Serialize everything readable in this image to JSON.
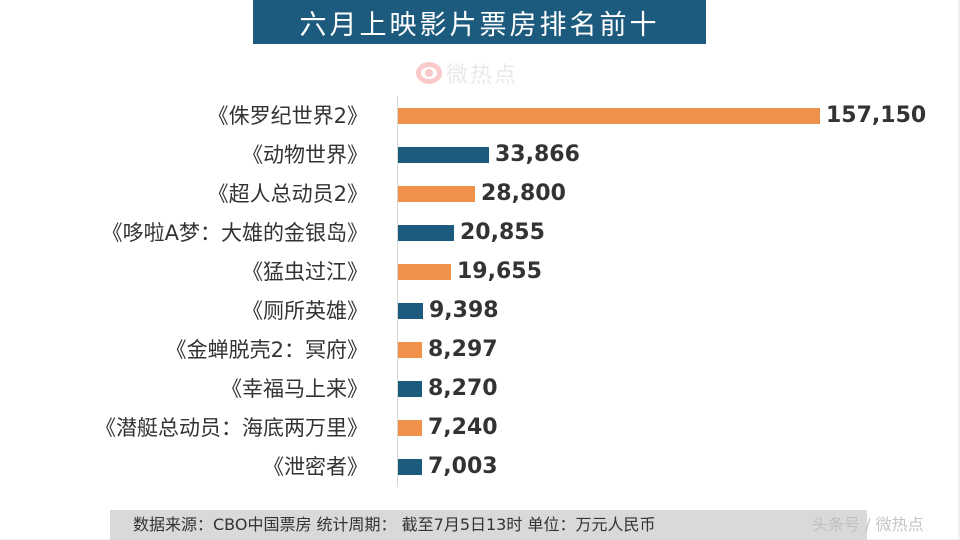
{
  "title": "六月上映影片票房排名前十",
  "watermark_top": "微热点",
  "footer": {
    "source_text": "数据来源：CBO中国票房  统计周期：  截至7月5日13时  单位：万元人民币",
    "watermark": "头条号 / 微热点"
  },
  "colors": {
    "banner": "#1c5a7e",
    "orange": "#f0914a",
    "blue": "#1c5a7e"
  },
  "chart_data": {
    "type": "bar",
    "orientation": "horizontal",
    "title": "六月上映影片票房排名前十",
    "xlabel": "",
    "ylabel": "",
    "unit": "万元人民币",
    "categories": [
      "《侏罗纪世界2》",
      "《动物世界》",
      "《超人总动员2》",
      "《哆啦A梦：大雄的金银岛》",
      "《猛虫过江》",
      "《厕所英雄》",
      "《金蝉脱壳2：冥府》",
      "《幸福马上来》",
      "《潜艇总动员：海底两万里》",
      "《泄密者》"
    ],
    "values": [
      157150,
      33866,
      28800,
      20855,
      19655,
      9398,
      8297,
      8270,
      7240,
      7003
    ],
    "value_labels": [
      "157,150",
      "33,866",
      "28,800",
      "20,855",
      "19,655",
      "9,398",
      "8,297",
      "8,270",
      "7,240",
      "7,003"
    ],
    "bar_colors": [
      "#f0914a",
      "#1c5a7e",
      "#f0914a",
      "#1c5a7e",
      "#f0914a",
      "#1c5a7e",
      "#f0914a",
      "#1c5a7e",
      "#f0914a",
      "#1c5a7e"
    ],
    "grid": false,
    "legend": "none",
    "source": "CBO中国票房",
    "period": "截至7月5日13时"
  }
}
